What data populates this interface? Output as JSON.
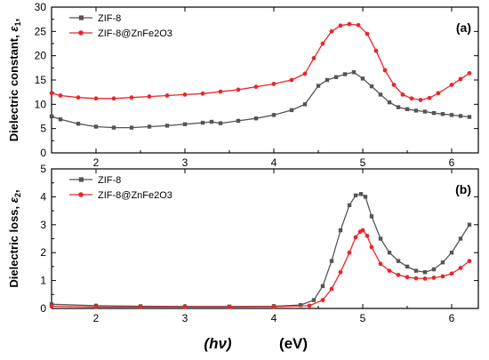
{
  "chart_data": [
    {
      "type": "line",
      "panel_label": "(a)",
      "ylabel_main": "Dielectric constant,",
      "ylabel_sym": "ε",
      "ylabel_sub": "1",
      "xlim": [
        1.5,
        6.3
      ],
      "ylim": [
        0,
        30
      ],
      "xticks": [
        "2",
        "3",
        "4",
        "5",
        "6"
      ],
      "yticks": [
        "0",
        "5",
        "10",
        "15",
        "20",
        "25",
        "30"
      ],
      "legend_position": "top-left",
      "series": [
        {
          "name": "ZIF-8",
          "color": "#555555",
          "marker": "square",
          "x": [
            1.5,
            1.6,
            1.8,
            2.0,
            2.2,
            2.4,
            2.6,
            2.8,
            3.0,
            3.2,
            3.3,
            3.4,
            3.6,
            3.8,
            4.0,
            4.2,
            4.35,
            4.5,
            4.6,
            4.7,
            4.8,
            4.9,
            5.0,
            5.1,
            5.2,
            5.3,
            5.4,
            5.5,
            5.6,
            5.7,
            5.8,
            5.9,
            6.0,
            6.1,
            6.2
          ],
          "y": [
            7.5,
            6.9,
            6.0,
            5.4,
            5.2,
            5.2,
            5.4,
            5.6,
            5.9,
            6.2,
            6.4,
            6.1,
            6.6,
            7.1,
            7.8,
            8.8,
            10.0,
            13.8,
            15.0,
            15.6,
            16.2,
            16.6,
            15.3,
            13.7,
            12.0,
            10.4,
            9.4,
            9.0,
            8.7,
            8.5,
            8.2,
            8.0,
            7.8,
            7.6,
            7.4
          ]
        },
        {
          "name": "ZIF-8@ZnFe2O3",
          "color": "#e8272b",
          "marker": "circle",
          "x": [
            1.5,
            1.6,
            1.8,
            2.0,
            2.2,
            2.4,
            2.6,
            2.8,
            3.0,
            3.2,
            3.4,
            3.6,
            3.8,
            4.0,
            4.2,
            4.35,
            4.45,
            4.55,
            4.65,
            4.75,
            4.85,
            4.95,
            5.05,
            5.15,
            5.25,
            5.35,
            5.45,
            5.55,
            5.65,
            5.75,
            5.85,
            6.0,
            6.1,
            6.2
          ],
          "y": [
            12.3,
            11.8,
            11.4,
            11.2,
            11.2,
            11.4,
            11.6,
            11.8,
            12.0,
            12.2,
            12.6,
            13.0,
            13.6,
            14.2,
            15.0,
            16.3,
            19.5,
            22.5,
            25.0,
            26.2,
            26.5,
            26.3,
            24.5,
            21.0,
            17.0,
            14.0,
            12.0,
            11.2,
            10.9,
            11.3,
            12.3,
            14.0,
            15.2,
            16.4
          ]
        }
      ]
    },
    {
      "type": "line",
      "panel_label": "(b)",
      "ylabel_main": "Dielectric loss,",
      "ylabel_sym": "ε",
      "ylabel_sub": "2",
      "xlim": [
        1.5,
        6.3
      ],
      "ylim": [
        0,
        5
      ],
      "xticks": [
        "2",
        "3",
        "4",
        "5",
        "6"
      ],
      "yticks": [
        "0",
        "1",
        "2",
        "3",
        "4",
        "5"
      ],
      "xlabel_sym": "(hν)",
      "xlabel_unit": "(eV)",
      "legend_position": "top-left",
      "series": [
        {
          "name": "ZIF-8",
          "color": "#555555",
          "marker": "square",
          "x": [
            1.5,
            2.0,
            2.5,
            3.0,
            3.5,
            4.0,
            4.3,
            4.45,
            4.55,
            4.65,
            4.75,
            4.85,
            4.92,
            4.98,
            5.03,
            5.1,
            5.2,
            5.3,
            5.4,
            5.5,
            5.6,
            5.7,
            5.8,
            5.9,
            6.0,
            6.1,
            6.2
          ],
          "y": [
            0.15,
            0.1,
            0.08,
            0.07,
            0.07,
            0.08,
            0.12,
            0.3,
            0.8,
            1.7,
            2.8,
            3.7,
            4.05,
            4.1,
            4.0,
            3.3,
            2.5,
            2.0,
            1.7,
            1.5,
            1.35,
            1.3,
            1.4,
            1.65,
            2.0,
            2.5,
            3.0
          ]
        },
        {
          "name": "ZIF-8@ZnFe2O3",
          "color": "#e8272b",
          "marker": "circle",
          "x": [
            1.5,
            2.0,
            2.5,
            3.0,
            3.5,
            4.0,
            4.4,
            4.55,
            4.65,
            4.75,
            4.85,
            4.92,
            4.97,
            5.0,
            5.05,
            5.1,
            5.2,
            5.3,
            5.4,
            5.5,
            5.6,
            5.7,
            5.8,
            5.9,
            6.0,
            6.1,
            6.2
          ],
          "y": [
            0.08,
            0.05,
            0.05,
            0.05,
            0.05,
            0.06,
            0.1,
            0.3,
            0.7,
            1.3,
            2.0,
            2.55,
            2.75,
            2.8,
            2.6,
            2.2,
            1.6,
            1.35,
            1.2,
            1.12,
            1.08,
            1.07,
            1.1,
            1.15,
            1.25,
            1.45,
            1.7
          ]
        }
      ]
    }
  ]
}
